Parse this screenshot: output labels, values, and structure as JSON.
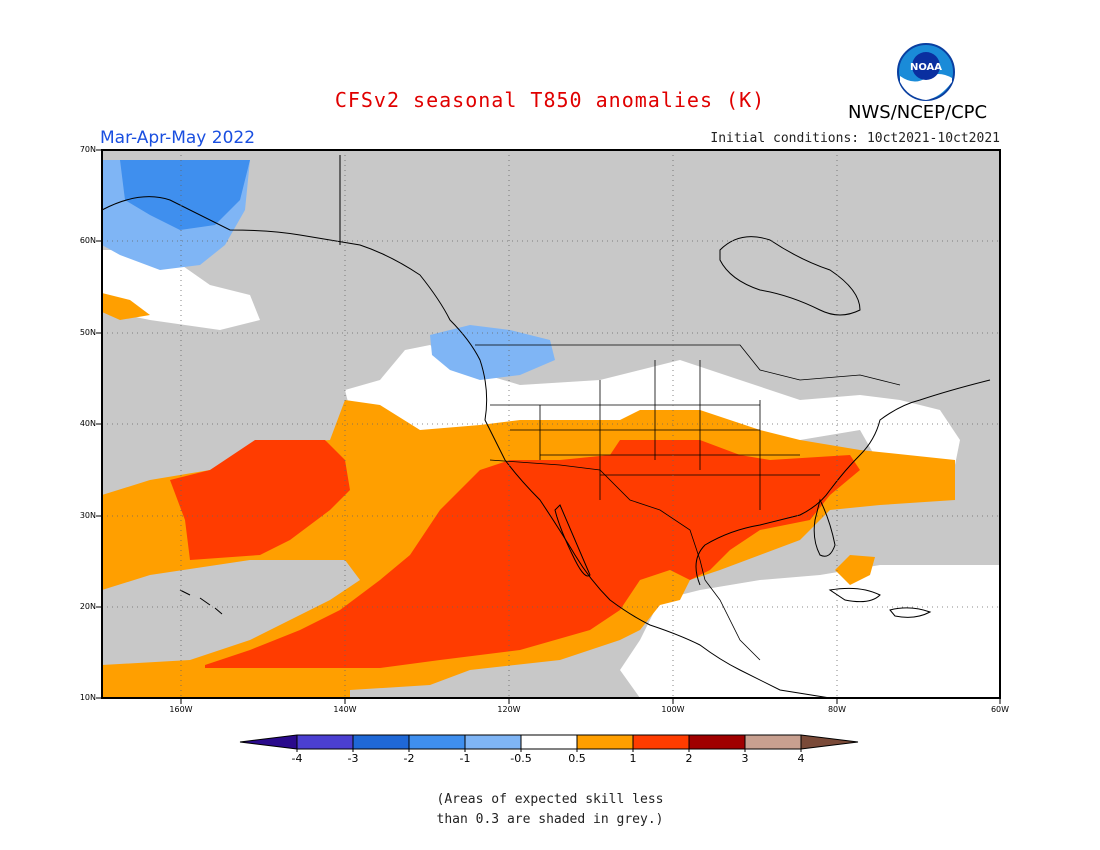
{
  "title": "CFSv2 seasonal T850 anomalies (K)",
  "agency": "NWS/NCEP/CPC",
  "logo_text": "NOAA",
  "season_label": "Mar-Apr-May 2022",
  "initial_conditions": "Initial conditions: 10ct2021-10ct2021",
  "map": {
    "latitude_labels": [
      "70N",
      "60N",
      "50N",
      "40N",
      "30N",
      "20N",
      "10N"
    ],
    "longitude_labels": [
      "160W",
      "140W",
      "120W",
      "100W",
      "80W",
      "60W"
    ]
  },
  "colorbar": {
    "labels": [
      "-4",
      "-3",
      "-2",
      "-1",
      "-0.5",
      "0.5",
      "1",
      "2",
      "3",
      "4"
    ],
    "colors": {
      "below_-4": "#2a0a8c",
      "-4_-3": "#4b3fd1",
      "-3_-2": "#1f68d6",
      "-2_-1": "#3f8fee",
      "-1_-0.5": "#7fb5f5",
      "-0.5_0.5": "#ffffff",
      "0.5_1": "#ff9f00",
      "1_2": "#ff3c00",
      "2_3": "#a00000",
      "3_4": "#c8a090",
      "above_4": "#7a4a38"
    }
  },
  "skill_mask_color": "#c8c8c8",
  "footnote": "(Areas of expected skill less\nthan 0.3 are shaded in grey.)"
}
